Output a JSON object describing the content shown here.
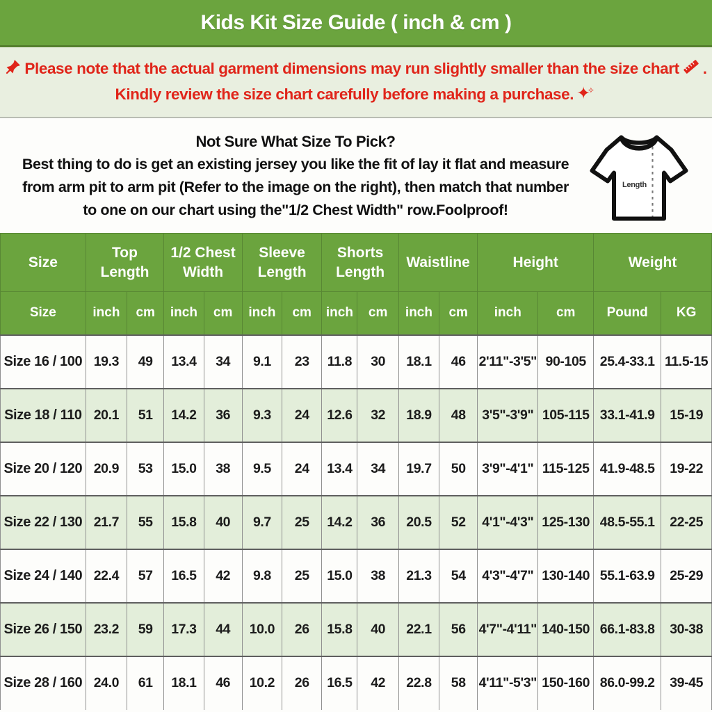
{
  "title": "Kids Kit Size Guide ( inch & cm )",
  "notice": {
    "line1_text": "Please note that the actual garment dimensions may run slightly smaller than the size chart",
    "line1_end": ".",
    "line2_text": "Kindly review the size chart carefully before making a purchase."
  },
  "info": {
    "heading": "Not Sure What Size To Pick?",
    "line1": "Best thing to do is get an existing jersey you like the fit of lay it flat and measure",
    "line2": "from arm pit to arm pit (Refer to the image on the right), then match that number",
    "line3": "to one on our chart using the\"1/2 Chest Width\" row.Foolproof!",
    "shirt_label": "Length"
  },
  "colors": {
    "header_green": "#6ba43e",
    "notice_bg": "#e9efe0",
    "alert_red": "#e0251a",
    "alt_row_bg": "#e3eeda"
  },
  "table": {
    "groups": [
      {
        "label": "Size",
        "span": 1
      },
      {
        "label": "Top Length",
        "span": 2
      },
      {
        "label": "1/2 Chest Width",
        "span": 2
      },
      {
        "label": "Sleeve Length",
        "span": 2
      },
      {
        "label": "Shorts Length",
        "span": 2
      },
      {
        "label": "Waistline",
        "span": 2
      },
      {
        "label": "Height",
        "span": 2
      },
      {
        "label": "Weight",
        "span": 2
      }
    ],
    "subheaders": [
      "Size",
      "inch",
      "cm",
      "inch",
      "cm",
      "inch",
      "cm",
      "inch",
      "cm",
      "inch",
      "cm",
      "inch",
      "cm",
      "Pound",
      "KG"
    ],
    "rows": [
      [
        "Size 16 / 100",
        "19.3",
        "49",
        "13.4",
        "34",
        "9.1",
        "23",
        "11.8",
        "30",
        "18.1",
        "46",
        "2'11\"-3'5\"",
        "90-105",
        "25.4-33.1",
        "11.5-15"
      ],
      [
        "Size 18 / 110",
        "20.1",
        "51",
        "14.2",
        "36",
        "9.3",
        "24",
        "12.6",
        "32",
        "18.9",
        "48",
        "3'5\"-3'9\"",
        "105-115",
        "33.1-41.9",
        "15-19"
      ],
      [
        "Size 20 / 120",
        "20.9",
        "53",
        "15.0",
        "38",
        "9.5",
        "24",
        "13.4",
        "34",
        "19.7",
        "50",
        "3'9\"-4'1\"",
        "115-125",
        "41.9-48.5",
        "19-22"
      ],
      [
        "Size 22 / 130",
        "21.7",
        "55",
        "15.8",
        "40",
        "9.7",
        "25",
        "14.2",
        "36",
        "20.5",
        "52",
        "4'1\"-4'3\"",
        "125-130",
        "48.5-55.1",
        "22-25"
      ],
      [
        "Size 24 / 140",
        "22.4",
        "57",
        "16.5",
        "42",
        "9.8",
        "25",
        "15.0",
        "38",
        "21.3",
        "54",
        "4'3\"-4'7\"",
        "130-140",
        "55.1-63.9",
        "25-29"
      ],
      [
        "Size 26 / 150",
        "23.2",
        "59",
        "17.3",
        "44",
        "10.0",
        "26",
        "15.8",
        "40",
        "22.1",
        "56",
        "4'7\"-4'11\"",
        "140-150",
        "66.1-83.8",
        "30-38"
      ],
      [
        "Size 28 / 160",
        "24.0",
        "61",
        "18.1",
        "46",
        "10.2",
        "26",
        "16.5",
        "42",
        "22.8",
        "58",
        "4'11\"-5'3\"",
        "150-160",
        "86.0-99.2",
        "39-45"
      ]
    ]
  }
}
